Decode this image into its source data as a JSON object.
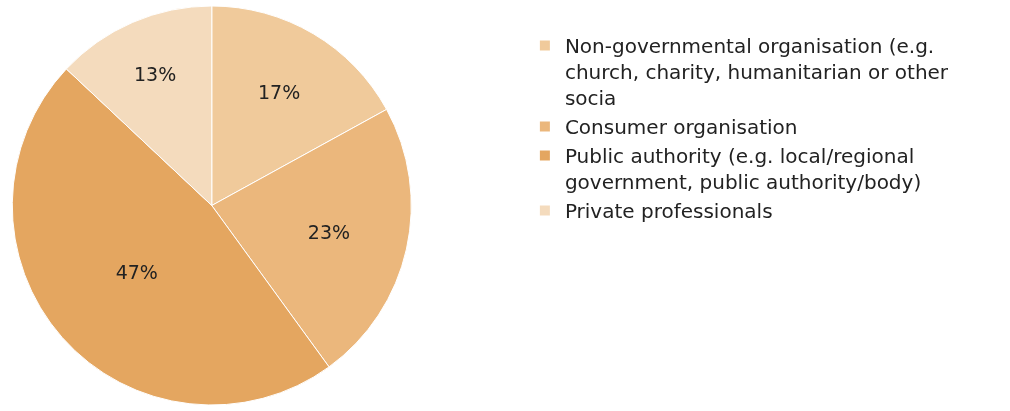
{
  "chart_data": {
    "type": "pie",
    "categories": [
      "Non-governmental organisation (e.g. church, charity, humanitarian or other socia",
      "Consumer organisation",
      "Public authority (e.g. local/regional government, public authority/body)",
      "Private professionals"
    ],
    "values": [
      17,
      23,
      47,
      13
    ],
    "value_labels": [
      "17%",
      "23%",
      "47%",
      "13%"
    ],
    "colors": [
      "#f0ca9b",
      "#ebb77c",
      "#e4a660",
      "#f4dbbd"
    ],
    "legend": "right"
  }
}
